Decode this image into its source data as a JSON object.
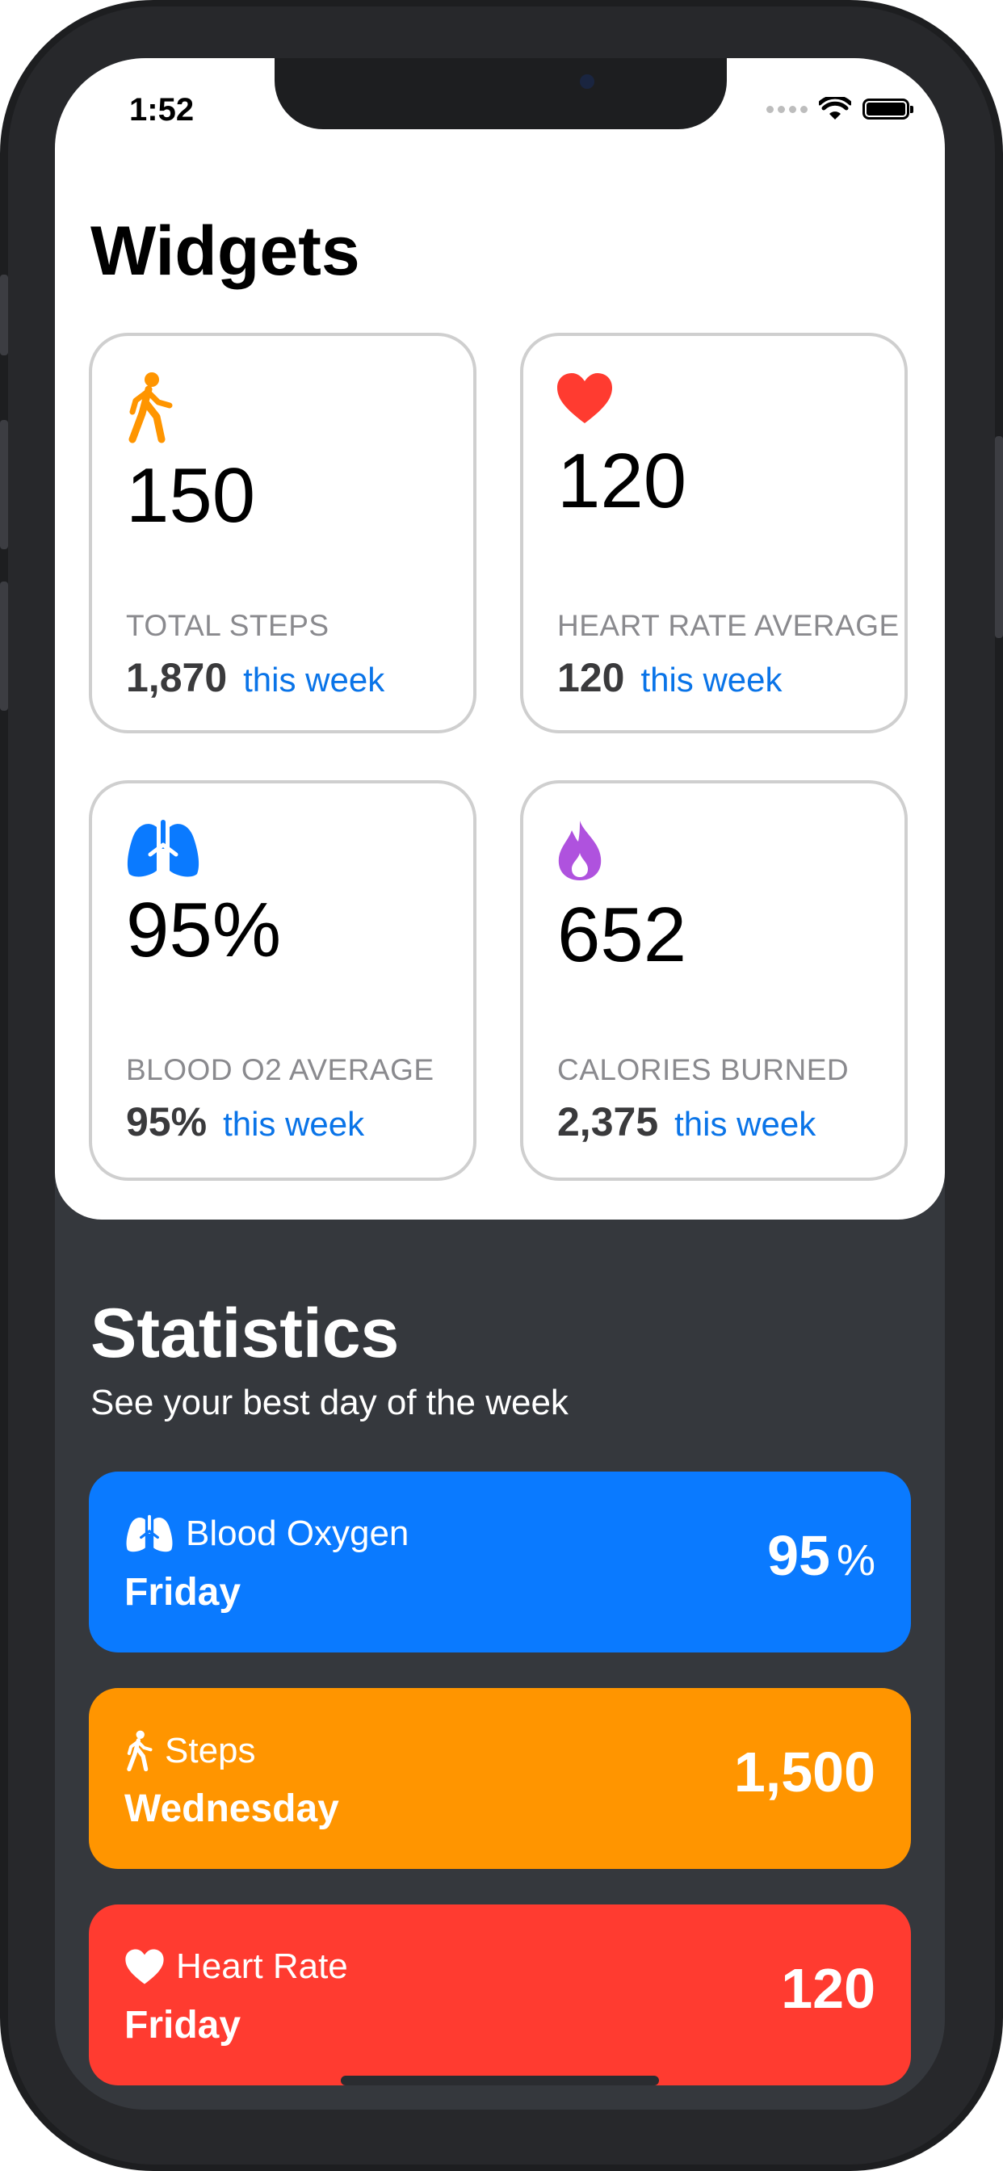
{
  "status_bar": {
    "time": "1:52"
  },
  "widgets": {
    "title": "Widgets",
    "cards": [
      {
        "icon": "walking-figure-icon",
        "value": "150",
        "label": "TOTAL STEPS",
        "week_value": "1,870",
        "week_label": "this week",
        "color": "#ff9500"
      },
      {
        "icon": "heart-icon",
        "value": "120",
        "label": "HEART RATE AVERAGE",
        "week_value": "120",
        "week_label": "this week",
        "color": "#ff3b30"
      },
      {
        "icon": "lungs-icon",
        "value": "95%",
        "label": "BLOOD O2 AVERAGE",
        "week_value": "95%",
        "week_label": "this week",
        "color": "#0a7aff"
      },
      {
        "icon": "flame-icon",
        "value": "652",
        "label": "CALORIES BURNED",
        "week_value": "2,375",
        "week_label": "this week",
        "color": "#af52de"
      }
    ]
  },
  "statistics": {
    "title": "Statistics",
    "subtitle": "See your best day of the week",
    "items": [
      {
        "icon": "lungs-icon",
        "name": "Blood Oxygen",
        "day": "Friday",
        "value": "95",
        "unit": "%",
        "color": "#0a7aff"
      },
      {
        "icon": "walking-figure-icon",
        "name": "Steps",
        "day": "Wednesday",
        "value": "1,500",
        "unit": "",
        "color": "#ff9500"
      },
      {
        "icon": "heart-icon",
        "name": "Heart Rate",
        "day": "Friday",
        "value": "120",
        "unit": "",
        "color": "#ff3b30"
      }
    ]
  }
}
